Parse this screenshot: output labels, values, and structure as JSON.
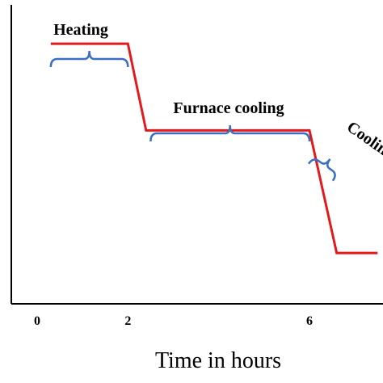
{
  "chart_data": {
    "type": "line",
    "xlabel": "Time in hours",
    "ylabel": "",
    "x_ticks": [
      {
        "value": 0,
        "label": "0"
      },
      {
        "value": 2,
        "label": "2"
      },
      {
        "value": 6,
        "label": "6"
      }
    ],
    "series": [
      {
        "color": "#e31a1c",
        "points": [
          {
            "x": 0.3,
            "y": 0.87
          },
          {
            "x": 2.0,
            "y": 0.87
          },
          {
            "x": 2.4,
            "y": 0.58
          },
          {
            "x": 6.0,
            "y": 0.58
          },
          {
            "x": 6.6,
            "y": 0.17
          },
          {
            "x": 7.5,
            "y": 0.17
          }
        ]
      }
    ],
    "annotations": [
      {
        "text": "Heating",
        "x_start": 0.3,
        "x_end": 2.0
      },
      {
        "text": "Furnace cooling",
        "x_start": 2.5,
        "x_end": 6.0
      },
      {
        "text": "Coolin",
        "x_start": 6.1,
        "x_end": 6.6
      }
    ],
    "grid": false,
    "legend": "none",
    "colors": {
      "line": "#e31a1c",
      "brace": "#3a6fc4",
      "axis": "#000000"
    }
  }
}
